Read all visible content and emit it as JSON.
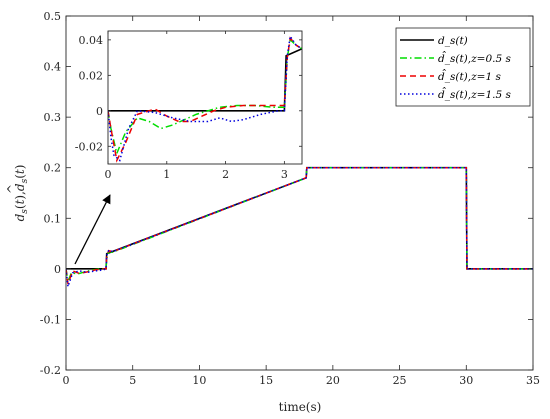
{
  "chart_data": [
    {
      "type": "line",
      "xlabel": "time(s)",
      "ylabel": "d_s(t), d̂_s(t)",
      "xlim": [
        0,
        35
      ],
      "ylim": [
        -0.2,
        0.5
      ],
      "xticks": [
        "0",
        "5",
        "10",
        "15",
        "20",
        "25",
        "30",
        "35"
      ],
      "yticks": [
        "-0.2",
        "-0.1",
        "0",
        "0.1",
        "0.2",
        "0.3",
        "0.4",
        "0.5"
      ],
      "grid": false,
      "legend_position": "top-right",
      "series": [
        {
          "name": "d_s(t)",
          "color": "#000000",
          "style": "solid",
          "x": [
            0,
            3,
            3.05,
            18,
            18.05,
            30,
            30.05,
            35
          ],
          "y": [
            0,
            0,
            0.03,
            0.18,
            0.2,
            0.2,
            0,
            0
          ]
        },
        {
          "name": "d̂_s(t),z=0.5 s",
          "color": "#00dd00",
          "style": "dash-dot",
          "x": [
            0,
            0.15,
            0.4,
            0.9,
            1.4,
            2.0,
            2.6,
            3.0,
            3.05,
            3.2,
            3.5,
            18,
            18.05,
            30,
            30.05,
            35
          ],
          "y": [
            0,
            -0.025,
            -0.008,
            -0.01,
            -0.006,
            -0.002,
            0.0,
            0.0,
            0.02,
            0.034,
            0.033,
            0.18,
            0.2,
            0.2,
            0,
            0
          ]
        },
        {
          "name": "d̂_s(t),z=1 s",
          "color": "#ee0000",
          "style": "dash",
          "x": [
            0,
            0.15,
            0.5,
            1.0,
            1.6,
            2.2,
            2.8,
            3.0,
            3.05,
            3.2,
            3.5,
            18,
            18.05,
            30,
            30.05,
            35
          ],
          "y": [
            0,
            -0.03,
            -0.004,
            -0.009,
            -0.006,
            -0.002,
            0.0,
            0.0,
            0.024,
            0.036,
            0.034,
            0.18,
            0.2,
            0.2,
            0,
            0
          ]
        },
        {
          "name": "d̂_s(t),z=1.5 s",
          "color": "#0000dd",
          "style": "dot",
          "x": [
            0,
            0.15,
            0.5,
            1.0,
            1.6,
            2.2,
            2.8,
            3.0,
            3.05,
            3.2,
            3.5,
            18,
            18.05,
            30,
            30.05,
            35
          ],
          "y": [
            0,
            -0.035,
            -0.008,
            -0.004,
            -0.007,
            -0.004,
            -0.002,
            0.0,
            0.026,
            0.037,
            0.034,
            0.18,
            0.2,
            0.2,
            0,
            0
          ]
        }
      ]
    },
    {
      "type": "line",
      "role": "inset",
      "xlim": [
        0,
        3.3
      ],
      "ylim": [
        -0.03,
        0.045
      ],
      "xticks": [
        "0",
        "1",
        "2",
        "3"
      ],
      "yticks": [
        "-0.02",
        "0",
        "0.02",
        "0.04"
      ],
      "grid": false,
      "series": [
        {
          "name": "d_s(t)",
          "color": "#000000",
          "style": "solid",
          "x": [
            0,
            3.0,
            3.03,
            3.3
          ],
          "y": [
            0,
            0,
            0.031,
            0.035
          ]
        },
        {
          "name": "d̂_s(t),z=0.5 s",
          "color": "#00dd00",
          "style": "dash-dot",
          "x": [
            0,
            0.05,
            0.15,
            0.3,
            0.5,
            0.7,
            0.9,
            1.1,
            1.3,
            1.5,
            1.7,
            1.9,
            2.2,
            2.5,
            2.8,
            3.0,
            3.05,
            3.1,
            3.2,
            3.3
          ],
          "y": [
            0,
            -0.01,
            -0.024,
            -0.012,
            -0.004,
            -0.006,
            -0.01,
            -0.008,
            -0.005,
            -0.002,
            0.0,
            0.002,
            0.003,
            0.003,
            0.002,
            0.002,
            0.03,
            0.04,
            0.037,
            0.035
          ]
        },
        {
          "name": "d̂_s(t),z=1 s",
          "color": "#ee0000",
          "style": "dash",
          "x": [
            0,
            0.05,
            0.15,
            0.3,
            0.5,
            0.8,
            1.0,
            1.2,
            1.4,
            1.6,
            1.8,
            2.0,
            2.3,
            2.6,
            2.9,
            3.0,
            3.05,
            3.1,
            3.2,
            3.3
          ],
          "y": [
            0,
            -0.01,
            -0.028,
            -0.018,
            -0.002,
            0.001,
            -0.003,
            -0.006,
            -0.006,
            -0.003,
            0.0,
            0.002,
            0.003,
            0.003,
            0.003,
            0.003,
            0.03,
            0.041,
            0.037,
            0.035
          ]
        },
        {
          "name": "d̂_s(t),z=1.5 s",
          "color": "#0000dd",
          "style": "dot",
          "x": [
            0,
            0.05,
            0.1,
            0.2,
            0.35,
            0.5,
            0.8,
            1.1,
            1.4,
            1.7,
            1.9,
            2.1,
            2.3,
            2.6,
            2.9,
            3.0,
            3.05,
            3.1,
            3.2,
            3.3
          ],
          "y": [
            0,
            -0.015,
            -0.025,
            -0.028,
            -0.01,
            0.0,
            -0.001,
            -0.004,
            -0.006,
            -0.006,
            -0.004,
            -0.006,
            -0.005,
            -0.002,
            0.0,
            0.0,
            0.031,
            0.042,
            0.037,
            0.035
          ]
        }
      ]
    }
  ]
}
